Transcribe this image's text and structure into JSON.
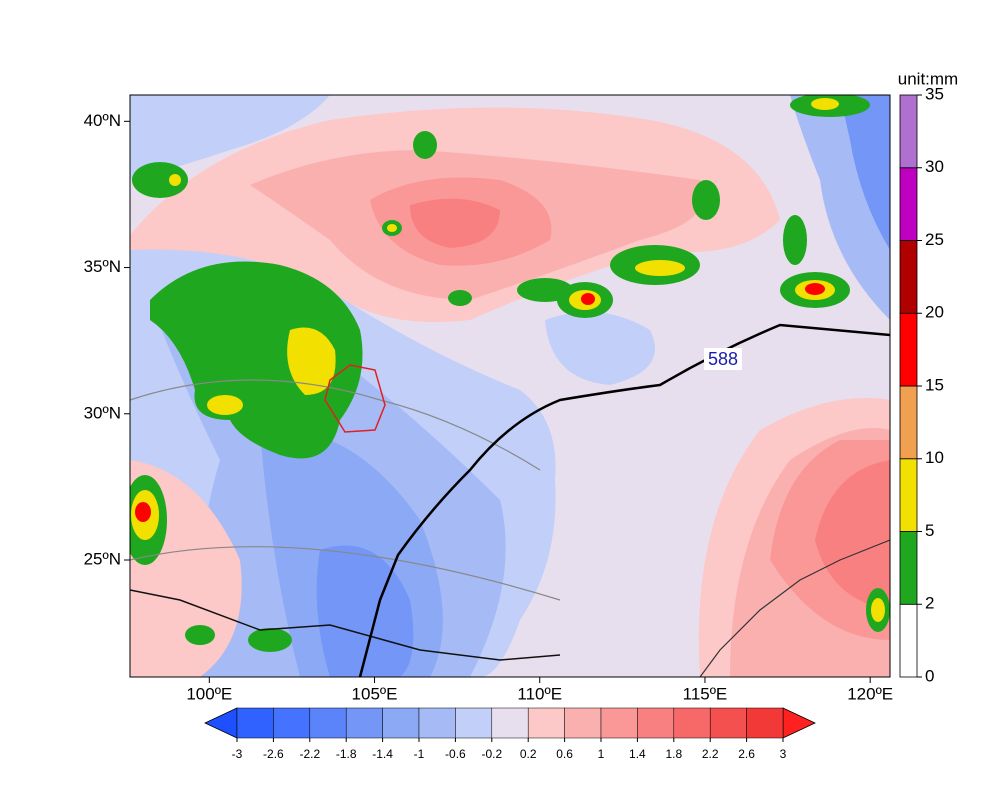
{
  "map": {
    "xlim": [
      97.6,
      120.6
    ],
    "ylim": [
      21,
      40.9
    ],
    "xticks": [
      {
        "value": 100,
        "label": "100ºE"
      },
      {
        "value": 105,
        "label": "105ºE"
      },
      {
        "value": 110,
        "label": "110ºE"
      },
      {
        "value": 115,
        "label": "115ºE"
      },
      {
        "value": 120,
        "label": "120ºE"
      }
    ],
    "yticks": [
      {
        "value": 25,
        "label": "25ºN"
      },
      {
        "value": 30,
        "label": "30ºN"
      },
      {
        "value": 35,
        "label": "35ºN"
      },
      {
        "value": 40,
        "label": "40ºN"
      }
    ],
    "contour_label": "588"
  },
  "precip_colorbar": {
    "unit": "unit:mm",
    "levels": [
      0,
      2,
      5,
      10,
      15,
      20,
      25,
      30,
      35
    ],
    "colors": [
      "#ffffff",
      "#1fa81f",
      "#f2e000",
      "#f0a050",
      "#ff0000",
      "#b00000",
      "#c000c0",
      "#b070d0"
    ]
  },
  "anomaly_colorbar": {
    "levels": [
      -3,
      -2.6,
      -2.2,
      -1.8,
      -1.4,
      -1,
      -0.6,
      -0.2,
      0.2,
      0.6,
      1,
      1.4,
      1.8,
      2.2,
      2.6,
      3
    ],
    "colors": [
      "#1e50ff",
      "#2f62ff",
      "#4573ff",
      "#5b84fb",
      "#7396f7",
      "#8ca9f5",
      "#a6bbf6",
      "#c1cff9",
      "#e8dfee",
      "#fcc8c8",
      "#fbb0b0",
      "#fa9898",
      "#f98080",
      "#f76868",
      "#f55050",
      "#f33838",
      "#ff2020"
    ]
  }
}
